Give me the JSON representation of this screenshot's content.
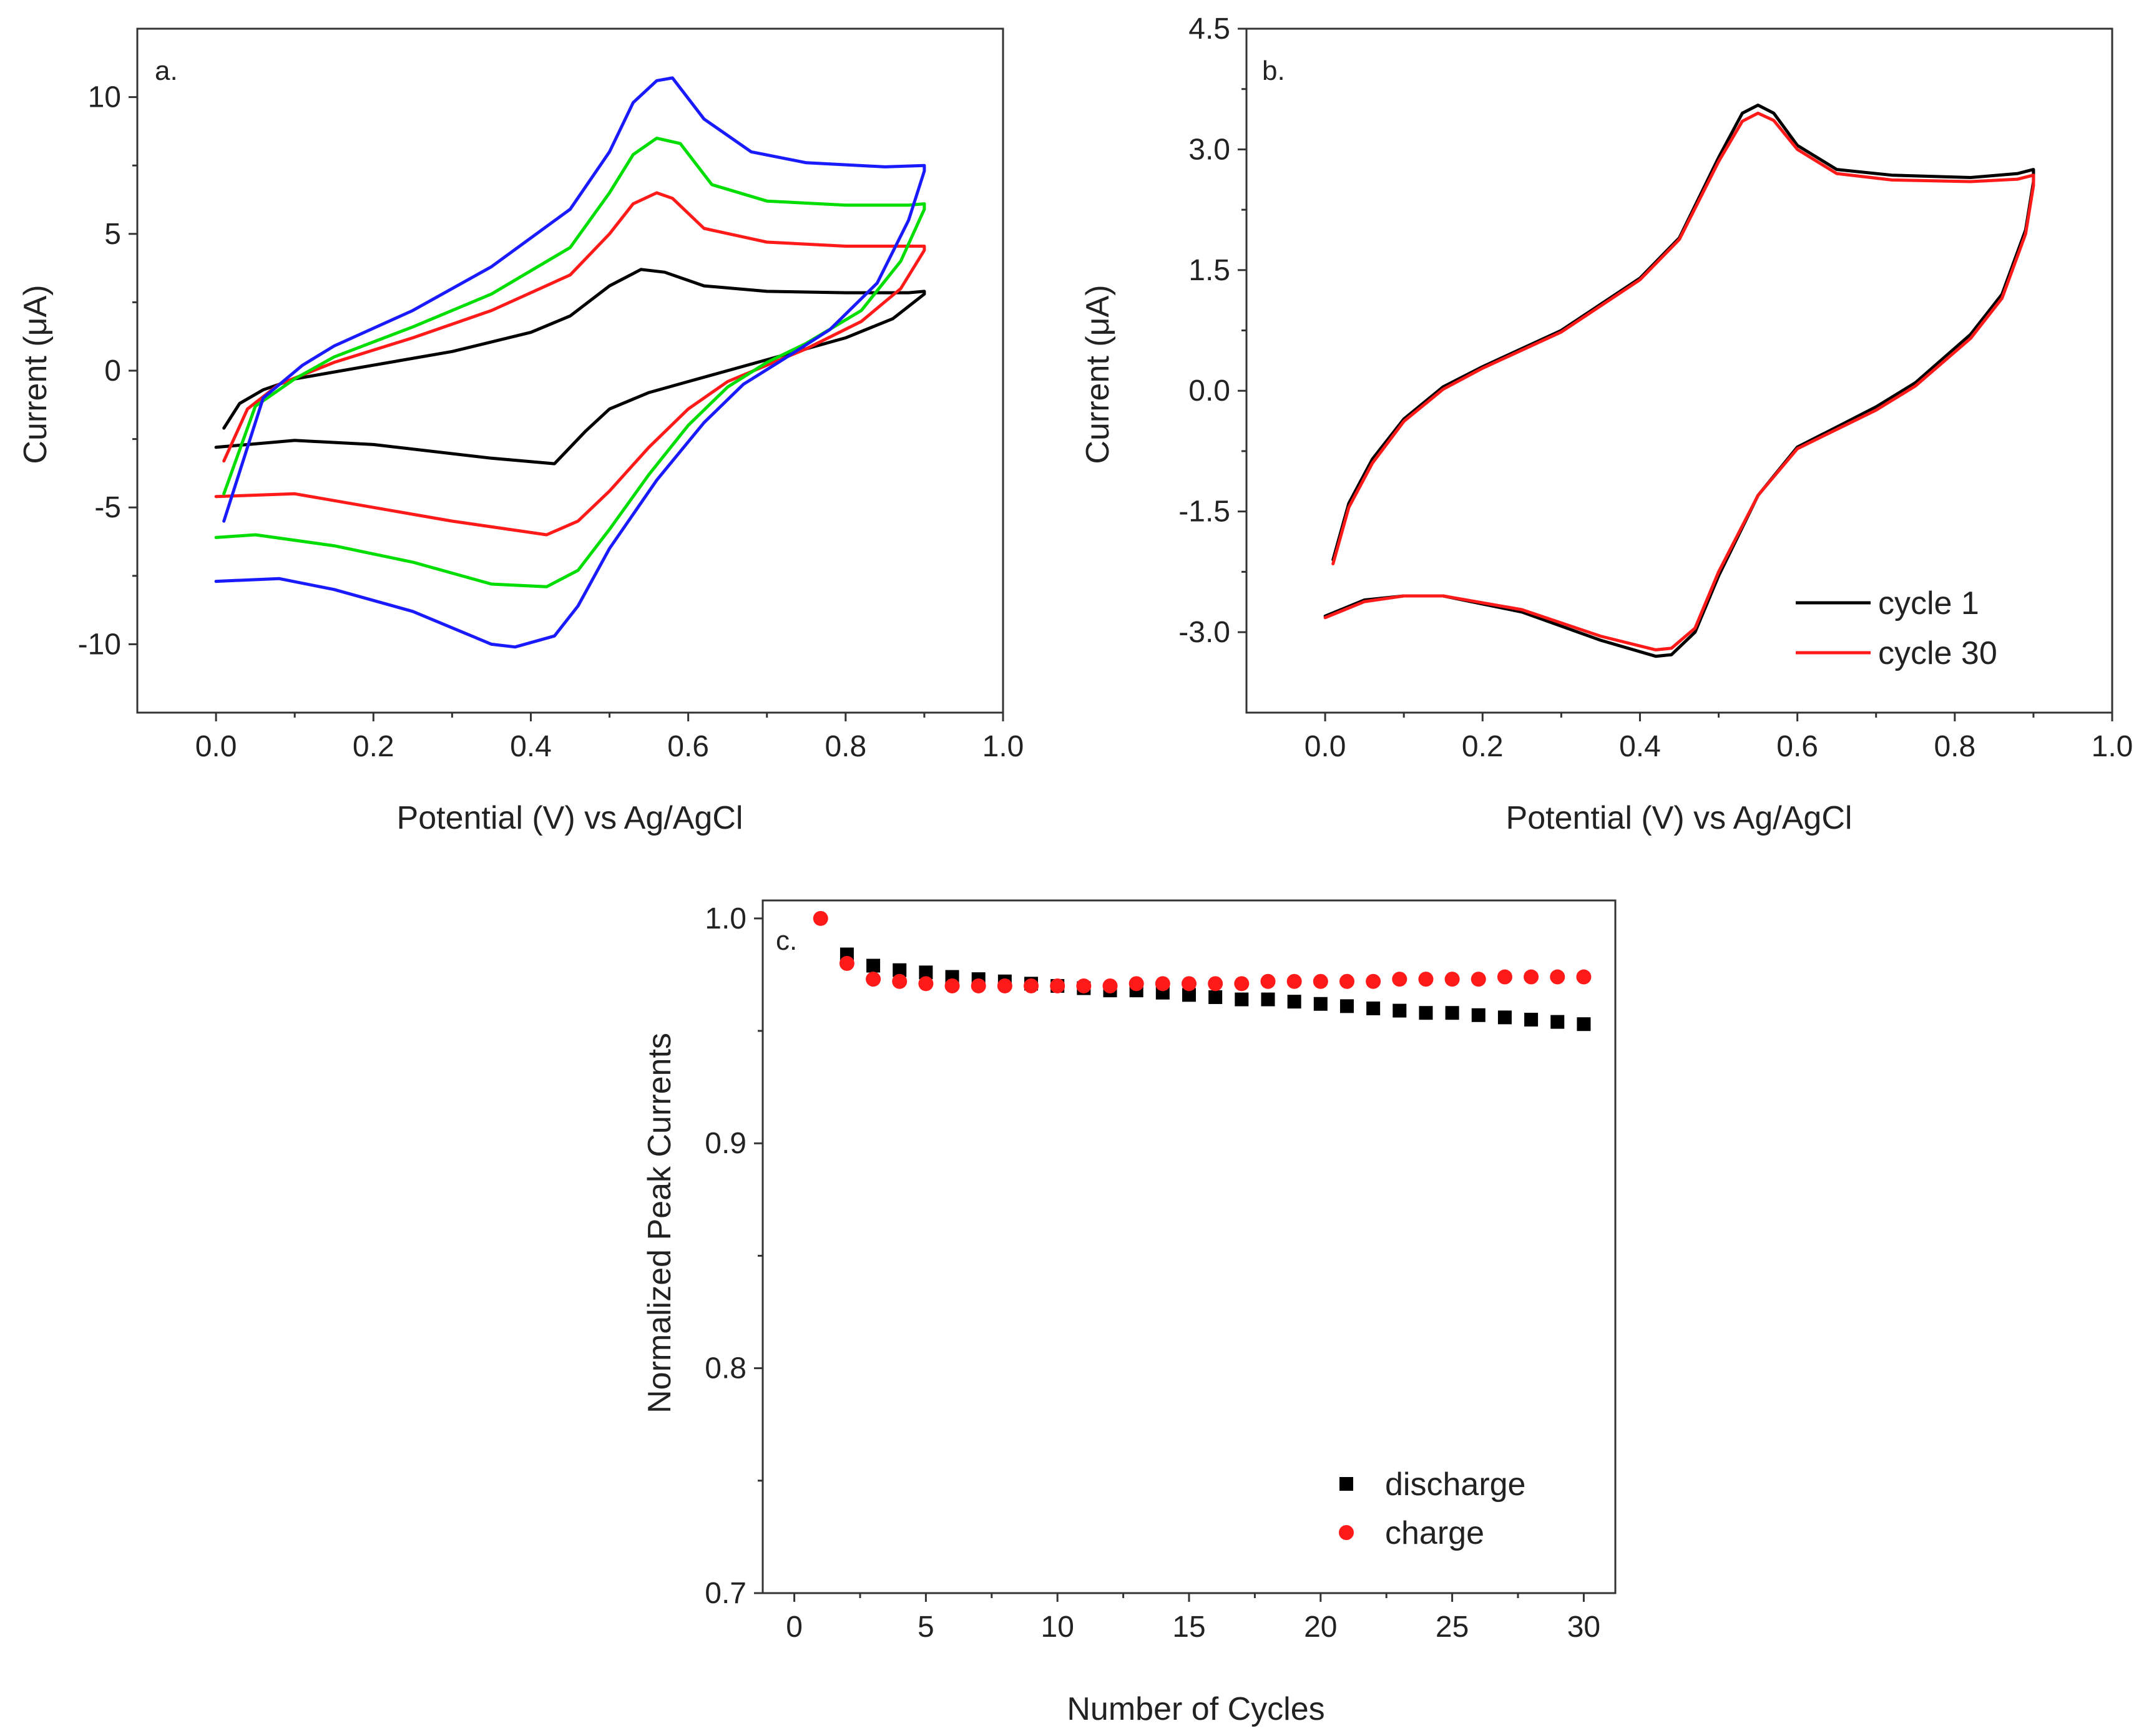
{
  "chart_data": [
    {
      "id": "a",
      "type": "line",
      "panel_label": "a.",
      "xlabel": "Potential (V) vs Ag/AgCl",
      "ylabel": "Current (μA)",
      "xlim": [
        -0.1,
        1.0
      ],
      "ylim": [
        -12.5,
        12.5
      ],
      "xticks": [
        0.0,
        0.2,
        0.4,
        0.6,
        0.8,
        1.0
      ],
      "xtick_labels": [
        "0.0",
        "0.2",
        "0.4",
        "0.6",
        "0.8",
        "1.0"
      ],
      "yticks": [
        -10,
        -5,
        0,
        5,
        10
      ],
      "ytick_labels": [
        "-10",
        "-5",
        "0",
        "5",
        "10"
      ],
      "series": [
        {
          "name": "black",
          "color": "#000000",
          "points": [
            [
              0.01,
              -2.1
            ],
            [
              0.03,
              -1.2
            ],
            [
              0.06,
              -0.7
            ],
            [
              0.1,
              -0.3
            ],
            [
              0.2,
              0.2
            ],
            [
              0.3,
              0.7
            ],
            [
              0.4,
              1.4
            ],
            [
              0.45,
              2.0
            ],
            [
              0.5,
              3.1
            ],
            [
              0.54,
              3.7
            ],
            [
              0.57,
              3.6
            ],
            [
              0.62,
              3.1
            ],
            [
              0.7,
              2.9
            ],
            [
              0.8,
              2.85
            ],
            [
              0.88,
              2.85
            ],
            [
              0.9,
              2.9
            ],
            [
              0.9,
              2.8
            ],
            [
              0.86,
              1.9
            ],
            [
              0.8,
              1.2
            ],
            [
              0.7,
              0.4
            ],
            [
              0.65,
              0.0
            ],
            [
              0.6,
              -0.4
            ],
            [
              0.55,
              -0.8
            ],
            [
              0.5,
              -1.4
            ],
            [
              0.47,
              -2.2
            ],
            [
              0.43,
              -3.4
            ],
            [
              0.35,
              -3.2
            ],
            [
              0.2,
              -2.7
            ],
            [
              0.1,
              -2.55
            ],
            [
              0.0,
              -2.8
            ]
          ]
        },
        {
          "name": "red",
          "color": "#ff1a1a",
          "points": [
            [
              0.01,
              -3.3
            ],
            [
              0.04,
              -1.4
            ],
            [
              0.08,
              -0.5
            ],
            [
              0.15,
              0.3
            ],
            [
              0.25,
              1.2
            ],
            [
              0.35,
              2.2
            ],
            [
              0.45,
              3.5
            ],
            [
              0.5,
              5.0
            ],
            [
              0.53,
              6.1
            ],
            [
              0.56,
              6.5
            ],
            [
              0.58,
              6.3
            ],
            [
              0.62,
              5.2
            ],
            [
              0.7,
              4.7
            ],
            [
              0.8,
              4.55
            ],
            [
              0.88,
              4.55
            ],
            [
              0.9,
              4.55
            ],
            [
              0.9,
              4.4
            ],
            [
              0.87,
              3.0
            ],
            [
              0.82,
              1.8
            ],
            [
              0.75,
              0.8
            ],
            [
              0.7,
              0.2
            ],
            [
              0.65,
              -0.4
            ],
            [
              0.6,
              -1.4
            ],
            [
              0.55,
              -2.8
            ],
            [
              0.5,
              -4.4
            ],
            [
              0.46,
              -5.5
            ],
            [
              0.42,
              -6.0
            ],
            [
              0.3,
              -5.5
            ],
            [
              0.2,
              -5.0
            ],
            [
              0.1,
              -4.5
            ],
            [
              0.0,
              -4.6
            ]
          ]
        },
        {
          "name": "green",
          "color": "#00dd00",
          "points": [
            [
              0.01,
              -4.5
            ],
            [
              0.05,
              -1.3
            ],
            [
              0.1,
              -0.3
            ],
            [
              0.15,
              0.5
            ],
            [
              0.25,
              1.6
            ],
            [
              0.35,
              2.8
            ],
            [
              0.45,
              4.5
            ],
            [
              0.5,
              6.5
            ],
            [
              0.53,
              7.9
            ],
            [
              0.56,
              8.5
            ],
            [
              0.59,
              8.3
            ],
            [
              0.63,
              6.8
            ],
            [
              0.7,
              6.2
            ],
            [
              0.8,
              6.05
            ],
            [
              0.88,
              6.05
            ],
            [
              0.9,
              6.1
            ],
            [
              0.9,
              5.9
            ],
            [
              0.87,
              4.0
            ],
            [
              0.82,
              2.2
            ],
            [
              0.75,
              1.0
            ],
            [
              0.7,
              0.3
            ],
            [
              0.65,
              -0.6
            ],
            [
              0.6,
              -2.0
            ],
            [
              0.55,
              -3.8
            ],
            [
              0.5,
              -5.8
            ],
            [
              0.46,
              -7.3
            ],
            [
              0.42,
              -7.9
            ],
            [
              0.35,
              -7.8
            ],
            [
              0.25,
              -7.0
            ],
            [
              0.15,
              -6.4
            ],
            [
              0.05,
              -6.0
            ],
            [
              0.0,
              -6.1
            ]
          ]
        },
        {
          "name": "blue",
          "color": "#1a1aff",
          "points": [
            [
              0.01,
              -5.5
            ],
            [
              0.06,
              -1.0
            ],
            [
              0.11,
              0.2
            ],
            [
              0.15,
              0.9
            ],
            [
              0.25,
              2.2
            ],
            [
              0.35,
              3.8
            ],
            [
              0.45,
              5.9
            ],
            [
              0.5,
              8.0
            ],
            [
              0.53,
              9.8
            ],
            [
              0.56,
              10.6
            ],
            [
              0.58,
              10.7
            ],
            [
              0.62,
              9.2
            ],
            [
              0.68,
              8.0
            ],
            [
              0.75,
              7.6
            ],
            [
              0.85,
              7.45
            ],
            [
              0.9,
              7.5
            ],
            [
              0.9,
              7.3
            ],
            [
              0.88,
              5.5
            ],
            [
              0.84,
              3.2
            ],
            [
              0.78,
              1.5
            ],
            [
              0.72,
              0.4
            ],
            [
              0.67,
              -0.5
            ],
            [
              0.62,
              -1.9
            ],
            [
              0.56,
              -4.0
            ],
            [
              0.5,
              -6.5
            ],
            [
              0.46,
              -8.6
            ],
            [
              0.43,
              -9.7
            ],
            [
              0.38,
              -10.1
            ],
            [
              0.35,
              -10.0
            ],
            [
              0.25,
              -8.8
            ],
            [
              0.15,
              -8.0
            ],
            [
              0.08,
              -7.6
            ],
            [
              0.0,
              -7.7
            ]
          ]
        }
      ]
    },
    {
      "id": "b",
      "type": "line",
      "panel_label": "b.",
      "xlabel": "Potential (V) vs Ag/AgCl",
      "ylabel": "Current (μA)",
      "xlim": [
        -0.1,
        1.0
      ],
      "ylim": [
        -4.0,
        4.5
      ],
      "xticks": [
        0.0,
        0.2,
        0.4,
        0.6,
        0.8,
        1.0
      ],
      "xtick_labels": [
        "0.0",
        "0.2",
        "0.4",
        "0.6",
        "0.8",
        "1.0"
      ],
      "yticks": [
        -3.0,
        -1.5,
        0.0,
        1.5,
        3.0,
        4.5
      ],
      "ytick_labels": [
        "-3.0",
        "-1.5",
        "0.0",
        "1.5",
        "3.0",
        "4.5"
      ],
      "legend": [
        "cycle 1",
        "cycle 30"
      ],
      "legend_position": "bottom-right",
      "series": [
        {
          "name": "cycle 1",
          "color": "#000000",
          "points": [
            [
              0.01,
              -2.1
            ],
            [
              0.03,
              -1.4
            ],
            [
              0.06,
              -0.85
            ],
            [
              0.1,
              -0.35
            ],
            [
              0.15,
              0.05
            ],
            [
              0.2,
              0.3
            ],
            [
              0.3,
              0.75
            ],
            [
              0.4,
              1.4
            ],
            [
              0.45,
              1.9
            ],
            [
              0.5,
              2.9
            ],
            [
              0.53,
              3.45
            ],
            [
              0.55,
              3.55
            ],
            [
              0.57,
              3.45
            ],
            [
              0.6,
              3.05
            ],
            [
              0.65,
              2.75
            ],
            [
              0.72,
              2.68
            ],
            [
              0.82,
              2.65
            ],
            [
              0.88,
              2.7
            ],
            [
              0.9,
              2.75
            ],
            [
              0.9,
              2.6
            ],
            [
              0.89,
              2.0
            ],
            [
              0.86,
              1.2
            ],
            [
              0.82,
              0.7
            ],
            [
              0.75,
              0.1
            ],
            [
              0.7,
              -0.2
            ],
            [
              0.65,
              -0.45
            ],
            [
              0.6,
              -0.7
            ],
            [
              0.55,
              -1.3
            ],
            [
              0.5,
              -2.3
            ],
            [
              0.47,
              -3.0
            ],
            [
              0.44,
              -3.28
            ],
            [
              0.42,
              -3.3
            ],
            [
              0.35,
              -3.1
            ],
            [
              0.25,
              -2.75
            ],
            [
              0.15,
              -2.55
            ],
            [
              0.1,
              -2.55
            ],
            [
              0.05,
              -2.6
            ],
            [
              0.0,
              -2.8
            ]
          ]
        },
        {
          "name": "cycle 30",
          "color": "#ff1a1a",
          "points": [
            [
              0.01,
              -2.15
            ],
            [
              0.03,
              -1.45
            ],
            [
              0.06,
              -0.9
            ],
            [
              0.1,
              -0.38
            ],
            [
              0.15,
              0.02
            ],
            [
              0.2,
              0.28
            ],
            [
              0.3,
              0.73
            ],
            [
              0.4,
              1.38
            ],
            [
              0.45,
              1.88
            ],
            [
              0.5,
              2.85
            ],
            [
              0.53,
              3.35
            ],
            [
              0.55,
              3.45
            ],
            [
              0.57,
              3.36
            ],
            [
              0.6,
              3.0
            ],
            [
              0.65,
              2.7
            ],
            [
              0.72,
              2.62
            ],
            [
              0.82,
              2.6
            ],
            [
              0.88,
              2.63
            ],
            [
              0.9,
              2.68
            ],
            [
              0.9,
              2.55
            ],
            [
              0.89,
              1.95
            ],
            [
              0.86,
              1.15
            ],
            [
              0.82,
              0.65
            ],
            [
              0.75,
              0.06
            ],
            [
              0.7,
              -0.24
            ],
            [
              0.65,
              -0.48
            ],
            [
              0.6,
              -0.72
            ],
            [
              0.55,
              -1.3
            ],
            [
              0.5,
              -2.25
            ],
            [
              0.47,
              -2.95
            ],
            [
              0.44,
              -3.2
            ],
            [
              0.42,
              -3.22
            ],
            [
              0.35,
              -3.05
            ],
            [
              0.25,
              -2.72
            ],
            [
              0.15,
              -2.55
            ],
            [
              0.1,
              -2.55
            ],
            [
              0.05,
              -2.62
            ],
            [
              0.0,
              -2.82
            ]
          ]
        }
      ]
    },
    {
      "id": "c",
      "type": "scatter",
      "panel_label": "c.",
      "xlabel": "Number of Cycles",
      "ylabel": "Normalized Peak Currents",
      "xlim": [
        -1.2,
        31.2
      ],
      "ylim": [
        0.7,
        1.008
      ],
      "xticks": [
        0,
        5,
        10,
        15,
        20,
        25,
        30
      ],
      "xtick_labels": [
        "0",
        "5",
        "10",
        "15",
        "20",
        "25",
        "30"
      ],
      "yticks": [
        0.7,
        0.8,
        0.9,
        1.0
      ],
      "ytick_labels": [
        "0.7",
        "0.8",
        "0.9",
        "1.0"
      ],
      "legend": [
        "discharge",
        "charge"
      ],
      "legend_position": "bottom-right",
      "series": [
        {
          "name": "discharge",
          "marker": "square",
          "color": "#000000",
          "x": [
            2,
            3,
            4,
            5,
            6,
            7,
            8,
            9,
            10,
            11,
            12,
            13,
            14,
            15,
            16,
            17,
            18,
            19,
            20,
            21,
            22,
            23,
            24,
            25,
            26,
            27,
            28,
            29,
            30
          ],
          "y": [
            0.984,
            0.979,
            0.977,
            0.976,
            0.974,
            0.973,
            0.972,
            0.971,
            0.97,
            0.969,
            0.968,
            0.968,
            0.967,
            0.966,
            0.965,
            0.964,
            0.964,
            0.963,
            0.962,
            0.961,
            0.96,
            0.959,
            0.958,
            0.958,
            0.957,
            0.956,
            0.955,
            0.954,
            0.953
          ]
        },
        {
          "name": "charge",
          "marker": "circle",
          "color": "#ff1a1a",
          "x": [
            1,
            2,
            3,
            4,
            5,
            6,
            7,
            8,
            9,
            10,
            11,
            12,
            13,
            14,
            15,
            16,
            17,
            18,
            19,
            20,
            21,
            22,
            23,
            24,
            25,
            26,
            27,
            28,
            29,
            30
          ],
          "y": [
            1.0,
            0.98,
            0.973,
            0.972,
            0.971,
            0.97,
            0.97,
            0.97,
            0.97,
            0.97,
            0.97,
            0.97,
            0.971,
            0.971,
            0.971,
            0.971,
            0.971,
            0.972,
            0.972,
            0.972,
            0.972,
            0.972,
            0.973,
            0.973,
            0.973,
            0.973,
            0.974,
            0.974,
            0.974,
            0.974
          ]
        }
      ]
    }
  ]
}
